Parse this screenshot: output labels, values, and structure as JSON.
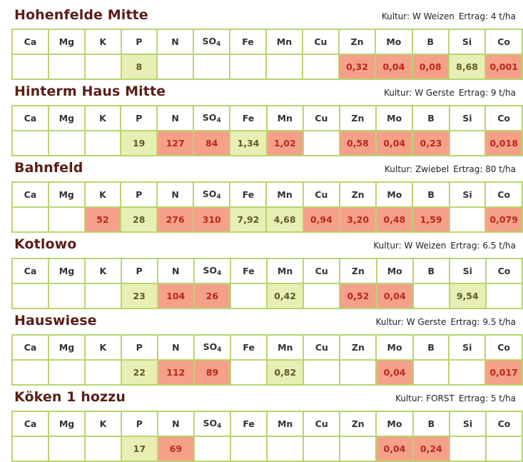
{
  "headers": [
    "Ca",
    "Mg",
    "K",
    "P",
    "N",
    "SO",
    "Fe",
    "Mn",
    "Cu",
    "Zn",
    "Mo",
    "B",
    "Si",
    "Co"
  ],
  "so4_sub": "4",
  "fields": [
    {
      "name": "Hohenfelde Mitte",
      "kultur_label": "Kultur:",
      "kultur": "W Weizen",
      "ertrag_label": "Ertrag:",
      "ertrag": "4 t/ha",
      "values": [
        "",
        "",
        "",
        "8",
        "",
        "",
        "",
        "",
        "",
        "0,32",
        "0,04",
        "0,08",
        "8,68",
        "0,001"
      ],
      "status": [
        "",
        "",
        "",
        "ok",
        "",
        "",
        "",
        "",
        "",
        "bad",
        "bad",
        "bad",
        "ok",
        "bad"
      ]
    },
    {
      "name": "Hinterm Haus Mitte",
      "kultur_label": "Kultur:",
      "kultur": "W Gerste",
      "ertrag_label": "Ertrag:",
      "ertrag": "9 t/ha",
      "values": [
        "",
        "",
        "",
        "19",
        "127",
        "84",
        "1,34",
        "1,02",
        "",
        "0,58",
        "0,04",
        "0,23",
        "",
        "0,018"
      ],
      "status": [
        "",
        "",
        "",
        "ok",
        "bad",
        "bad",
        "ok",
        "bad",
        "",
        "bad",
        "bad",
        "bad",
        "",
        "bad"
      ]
    },
    {
      "name": "Bahnfeld",
      "kultur_label": "Kultur:",
      "kultur": "Zwiebel",
      "ertrag_label": "Ertrag:",
      "ertrag": "80 t/ha",
      "values": [
        "",
        "",
        "52",
        "28",
        "276",
        "310",
        "7,92",
        "4,68",
        "0,94",
        "3,20",
        "0,48",
        "1,59",
        "",
        "0,079"
      ],
      "status": [
        "",
        "",
        "bad",
        "ok",
        "bad",
        "bad",
        "ok",
        "ok",
        "bad",
        "bad",
        "bad",
        "bad",
        "",
        "bad"
      ]
    },
    {
      "name": "Kotlowo",
      "kultur_label": "Kultur:",
      "kultur": "W Weizen",
      "ertrag_label": "Ertrag:",
      "ertrag": "6.5 t/ha",
      "values": [
        "",
        "",
        "",
        "23",
        "104",
        "26",
        "",
        "0,42",
        "",
        "0,52",
        "0,04",
        "",
        "9,54",
        ""
      ],
      "status": [
        "",
        "",
        "",
        "ok",
        "bad",
        "bad",
        "",
        "ok",
        "",
        "bad",
        "bad",
        "",
        "ok",
        ""
      ]
    },
    {
      "name": "Hauswiese",
      "kultur_label": "Kultur:",
      "kultur": "W Gerste",
      "ertrag_label": "Ertrag:",
      "ertrag": "9.5 t/ha",
      "values": [
        "",
        "",
        "",
        "22",
        "112",
        "89",
        "",
        "0,82",
        "",
        "",
        "0,04",
        "",
        "",
        "0,017"
      ],
      "status": [
        "",
        "",
        "",
        "ok",
        "bad",
        "bad",
        "",
        "ok",
        "",
        "",
        "bad",
        "",
        "",
        "bad"
      ]
    },
    {
      "name": "Köken 1 hozzu",
      "kultur_label": "Kultur:",
      "kultur": "FORST",
      "ertrag_label": "Ertrag:",
      "ertrag": "5 t/ha",
      "values": [
        "",
        "",
        "",
        "17",
        "69",
        "",
        "",
        "",
        "",
        "",
        "0,04",
        "0,24",
        "",
        ""
      ],
      "status": [
        "",
        "",
        "",
        "ok",
        "bad",
        "",
        "",
        "",
        "",
        "",
        "bad",
        "bad",
        "",
        ""
      ]
    }
  ],
  "colors": {
    "ok": "#e8efb4",
    "bad": "#f5a18a",
    "border": "#b8d56f",
    "title": "#5a1f16"
  }
}
